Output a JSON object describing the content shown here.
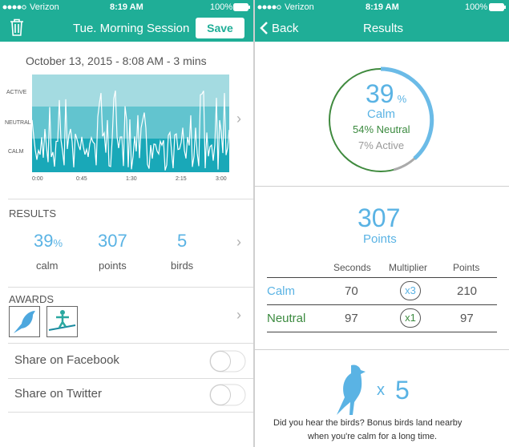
{
  "left": {
    "status": {
      "carrier": "Verizon",
      "time": "8:19 AM",
      "battery": "100%"
    },
    "header": {
      "title": "Tue. Morning Session",
      "save": "Save"
    },
    "session_date": "October 13, 2015 - 8:08 AM - 3 mins",
    "chart": {
      "levels": [
        "ACTIVE",
        "NEUTRAL",
        "CALM"
      ],
      "time_labels": [
        "0:00",
        "0:45",
        "1:30",
        "2:15",
        "3:00"
      ]
    },
    "results": {
      "heading": "RESULTS",
      "items": [
        {
          "value": 39,
          "unit": "%",
          "label": "calm"
        },
        {
          "value": 307,
          "label": "points"
        },
        {
          "value": 5,
          "label": "birds"
        }
      ]
    },
    "awards": {
      "heading": "AWARDS"
    },
    "share": [
      "Share on Facebook",
      "Share on Twitter"
    ]
  },
  "right": {
    "status": {
      "carrier": "Verizon",
      "time": "8:19 AM",
      "battery": "100%"
    },
    "header": {
      "back": "Back",
      "title": "Results"
    },
    "ring": {
      "calm_value": 39,
      "calm_unit": "%",
      "calm_label": "Calm",
      "neutral": "54% Neutral",
      "active": "7% Active"
    },
    "points": {
      "value": 307,
      "label": "Points"
    },
    "table": {
      "columns": [
        "Seconds",
        "Multiplier",
        "Points"
      ],
      "rows": [
        [
          "Calm",
          70,
          "x3",
          210
        ],
        [
          "Neutral",
          97,
          "x1",
          97
        ]
      ]
    },
    "birds": {
      "times": "x",
      "count": 5,
      "caption": [
        "Did you hear the birds? Bonus birds land nearby",
        "when you're calm for a long time."
      ]
    }
  }
}
